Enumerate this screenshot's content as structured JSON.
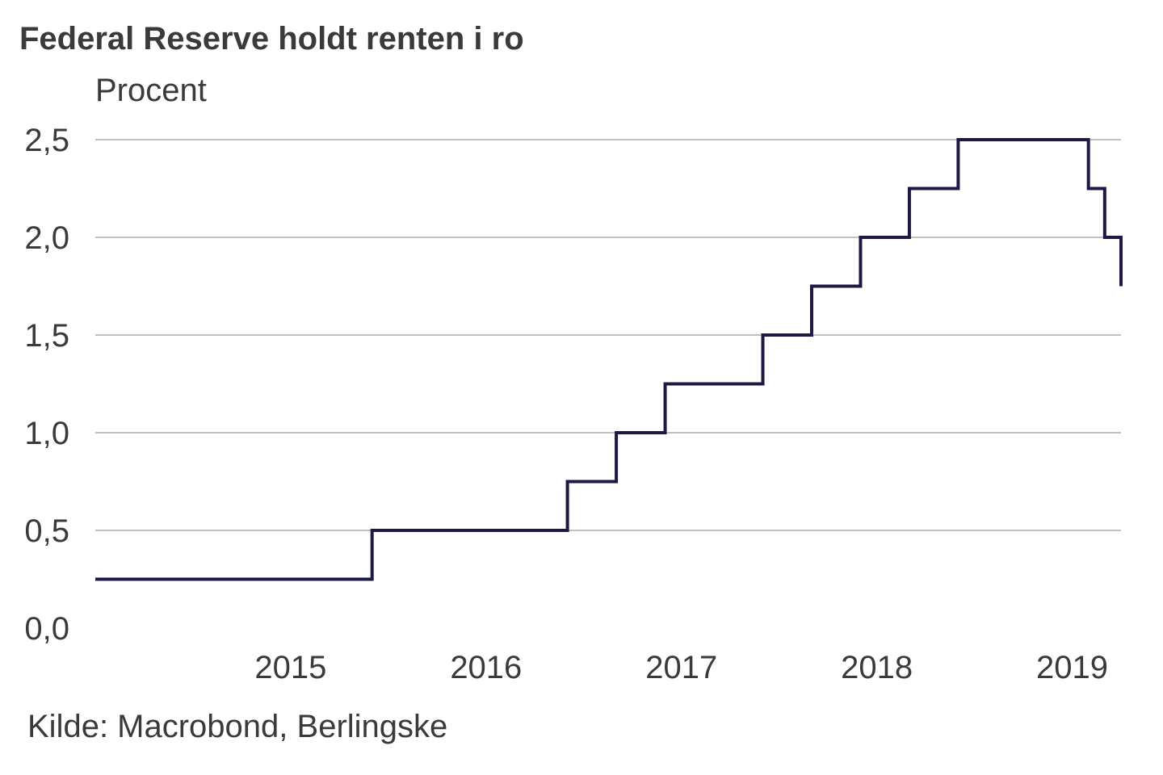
{
  "chart_data": {
    "type": "line",
    "title": "Federal Reserve holdt renten i ro",
    "ylabel": "Procent",
    "source": "Kilde: Macrobond, Berlingske",
    "ylim": [
      0,
      2.5
    ],
    "yticks": [
      0,
      0.5,
      1.0,
      1.5,
      2.0,
      2.5
    ],
    "ytick_labels": [
      "0,0",
      "0,5",
      "1,0",
      "1,5",
      "2,0",
      "2,5"
    ],
    "xlim": [
      "2014-07",
      "2019-10"
    ],
    "xtick_labels": [
      "2015",
      "2016",
      "2017",
      "2018",
      "2019"
    ],
    "grid": true,
    "line_color": "#1c1a45",
    "step": true,
    "series": [
      {
        "x": [
          "2014-07",
          "2015-12",
          "2016-12",
          "2017-03",
          "2017-06",
          "2017-12",
          "2018-03",
          "2018-06",
          "2018-09",
          "2018-12",
          "2019-08",
          "2019-09",
          "2019-10",
          "2019-10"
        ],
        "values": [
          0.25,
          0.5,
          0.75,
          1.0,
          1.25,
          1.5,
          1.75,
          2.0,
          2.25,
          2.5,
          2.25,
          2.0,
          1.75,
          1.75
        ]
      }
    ]
  }
}
